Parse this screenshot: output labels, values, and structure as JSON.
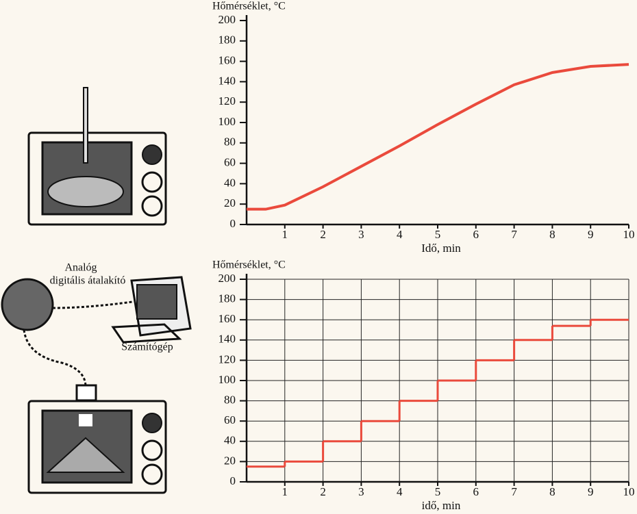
{
  "chart_data": [
    {
      "type": "line",
      "ylabel": "Hőmérséklet, °C",
      "xlabel": "Idő, min",
      "x": [
        0,
        0.5,
        1,
        1.5,
        2,
        3,
        4,
        5,
        6,
        7,
        8,
        9,
        10
      ],
      "values": [
        15,
        15,
        19,
        28,
        37,
        57,
        77,
        98,
        118,
        137,
        149,
        155,
        157
      ],
      "color": "#ea4a3c",
      "xlim": [
        0,
        10
      ],
      "ylim": [
        0,
        200
      ],
      "xticks": [
        1,
        2,
        3,
        4,
        5,
        6,
        7,
        8,
        9,
        10
      ],
      "yticks": [
        0,
        20,
        40,
        60,
        80,
        100,
        120,
        140,
        160,
        180,
        200
      ],
      "grid": false
    },
    {
      "type": "step",
      "ylabel": "Hőmérséklet, °C",
      "xlabel": "idő, min",
      "x": [
        0,
        1,
        2,
        3,
        4,
        5,
        6,
        7,
        8,
        9
      ],
      "values": [
        15,
        20,
        40,
        60,
        80,
        100,
        120,
        140,
        154,
        160
      ],
      "color": "#ea4a3c",
      "xlim": [
        0,
        10
      ],
      "ylim": [
        0,
        200
      ],
      "xticks": [
        1,
        2,
        3,
        4,
        5,
        6,
        7,
        8,
        9,
        10
      ],
      "yticks": [
        0,
        20,
        40,
        60,
        80,
        100,
        120,
        140,
        160,
        180,
        200
      ],
      "grid": true
    }
  ],
  "illustration": {
    "converter_label": [
      "Analóg",
      "digitális átalakító"
    ],
    "computer_label": "Számítógép"
  }
}
